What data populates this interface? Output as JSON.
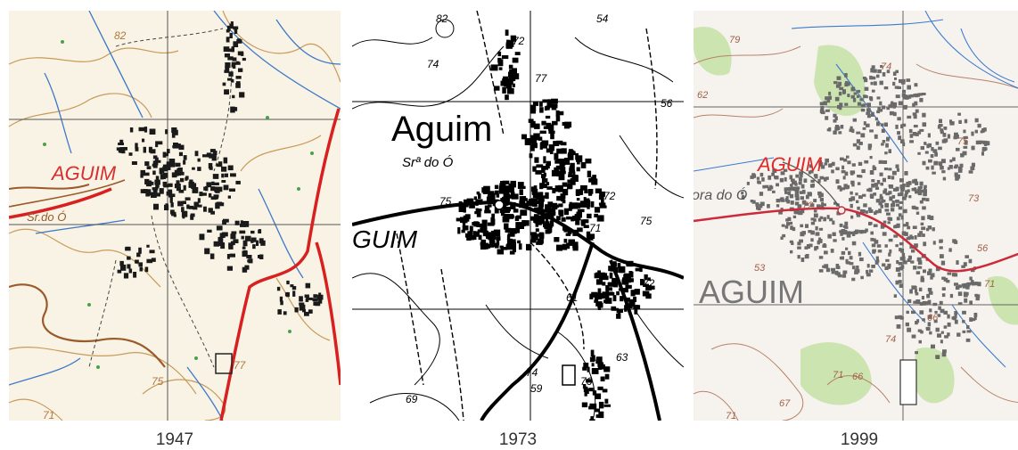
{
  "maps": [
    {
      "year": "1947",
      "town_label": "AGUIM",
      "chapel_label": "Sr.do Ó",
      "elevations": [
        "82",
        "75",
        "77",
        "71"
      ],
      "colors": {
        "paper": "#f8f3e4",
        "contour": "#c99a5a",
        "road": "#d82020",
        "water": "#3e78c8",
        "grid": "#555555",
        "town": "#1a1a1a",
        "label": "#d83030",
        "veg": "#4aa04a"
      }
    },
    {
      "year": "1973",
      "town_label": "Aguim",
      "town_label_partial": "GUIM",
      "chapel_label": "Srª do Ó",
      "elevations": [
        "82",
        "54",
        "72",
        "74",
        "77",
        "56",
        "75",
        "72",
        "71",
        "75",
        "61",
        "72",
        "74",
        "76",
        "63",
        "69",
        "59"
      ],
      "colors": {
        "paper": "#ffffff",
        "ink": "#000000"
      }
    },
    {
      "year": "1999",
      "town_label": "AGUIM",
      "town_label_large": "AGUIM",
      "chapel_label": "ora do Ó",
      "elevations": [
        "79",
        "74",
        "62",
        "75",
        "73",
        "72",
        "56",
        "53",
        "71",
        "66",
        "74",
        "67",
        "71",
        "66",
        "71"
      ],
      "colors": {
        "paper": "#f6f3ee",
        "contour": "#b8806a",
        "road": "#cc2a3a",
        "water": "#3a7ad0",
        "grid": "#666666",
        "town": "#6a6a6a",
        "veg": "#c6e2a8",
        "label": "#e02a2a",
        "label_large": "#777777"
      }
    }
  ]
}
